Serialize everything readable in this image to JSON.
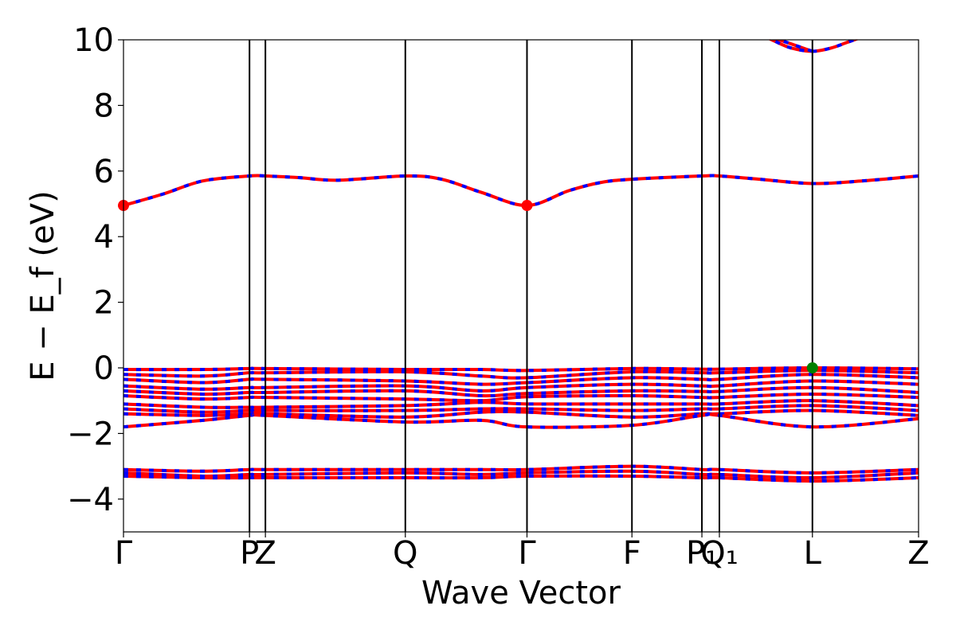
{
  "chart_data": {
    "type": "line",
    "title": "",
    "xlabel": "Wave Vector",
    "ylabel": "E − E_f (eV)",
    "ylim": [
      -5,
      10
    ],
    "yticks": [
      -4,
      -2,
      0,
      2,
      4,
      6,
      8,
      10
    ],
    "grid": false,
    "kpoints": [
      {
        "label": "Γ",
        "x": 0.0
      },
      {
        "label": "P",
        "x": 0.1585
      },
      {
        "label": "Z",
        "x": 0.1785
      },
      {
        "label": "Q",
        "x": 0.3545
      },
      {
        "label": "Γ",
        "x": 0.5075
      },
      {
        "label": "F",
        "x": 0.6395
      },
      {
        "label": "P₁",
        "x": 0.7275
      },
      {
        "label": "Q₁",
        "x": 0.7495
      },
      {
        "label": "L",
        "x": 0.8665
      },
      {
        "label": "Z",
        "x": 1.0
      }
    ],
    "colors": {
      "spin_up": "#0000ff",
      "spin_down": "#ff0000",
      "cbm_marker": "#ff0000",
      "vbm_marker": "#008000",
      "kline": "#000000"
    },
    "series": [
      {
        "x": [
          0.0,
          0.05,
          0.1,
          0.1585,
          0.1785,
          0.22,
          0.27,
          0.3545,
          0.4,
          0.45,
          0.5075,
          0.56,
          0.6,
          0.6395,
          0.7275,
          0.7495,
          0.8,
          0.8665,
          0.93,
          1.0
        ],
        "y": [
          4.95,
          5.3,
          5.7,
          5.85,
          5.85,
          5.8,
          5.72,
          5.85,
          5.75,
          5.35,
          4.95,
          5.4,
          5.65,
          5.75,
          5.85,
          5.85,
          5.75,
          5.62,
          5.7,
          5.85
        ]
      },
      {
        "x": [
          0.8665,
          0.8,
          0.82,
          0.84,
          0.8665,
          0.89,
          0.91,
          0.925
        ],
        "y": [
          9.65,
          10.2,
          9.95,
          9.75,
          9.65,
          9.75,
          9.92,
          10.05
        ]
      },
      {
        "x": [
          0.0,
          0.1,
          0.1585,
          0.1785,
          0.3545,
          0.45,
          0.5075,
          0.6395,
          0.7275,
          0.7495,
          0.8665,
          1.0
        ],
        "y": [
          -0.05,
          -0.05,
          -0.02,
          -0.02,
          -0.05,
          -0.05,
          -0.08,
          -0.02,
          -0.04,
          -0.04,
          0.0,
          -0.03
        ]
      },
      {
        "x": [
          0.0,
          0.1,
          0.1585,
          0.1785,
          0.3545,
          0.45,
          0.5075,
          0.6395,
          0.7275,
          0.7495,
          0.8665,
          1.0
        ],
        "y": [
          -0.2,
          -0.25,
          -0.15,
          -0.15,
          -0.12,
          -0.25,
          -0.3,
          -0.12,
          -0.15,
          -0.15,
          -0.08,
          -0.15
        ]
      },
      {
        "x": [
          0.0,
          0.1,
          0.1585,
          0.1785,
          0.3545,
          0.45,
          0.5075,
          0.6395,
          0.7275,
          0.7495,
          0.8665,
          1.0
        ],
        "y": [
          -0.35,
          -0.45,
          -0.35,
          -0.35,
          -0.4,
          -0.5,
          -0.45,
          -0.3,
          -0.35,
          -0.35,
          -0.2,
          -0.3
        ]
      },
      {
        "x": [
          0.0,
          0.1,
          0.1585,
          0.1785,
          0.3545,
          0.45,
          0.5075,
          0.6395,
          0.7275,
          0.7495,
          0.8665,
          1.0
        ],
        "y": [
          -0.55,
          -0.65,
          -0.6,
          -0.6,
          -0.55,
          -0.7,
          -0.6,
          -0.5,
          -0.55,
          -0.55,
          -0.4,
          -0.5
        ]
      },
      {
        "x": [
          0.0,
          0.1,
          0.1585,
          0.1785,
          0.3545,
          0.45,
          0.5075,
          0.6395,
          0.7275,
          0.7495,
          0.8665,
          1.0
        ],
        "y": [
          -0.7,
          -0.8,
          -0.75,
          -0.75,
          -0.7,
          -0.85,
          -0.78,
          -0.7,
          -0.72,
          -0.72,
          -0.6,
          -0.75
        ]
      },
      {
        "x": [
          0.0,
          0.1,
          0.1585,
          0.1785,
          0.3545,
          0.45,
          0.5075,
          0.6395,
          0.7275,
          0.7495,
          0.8665,
          1.0
        ],
        "y": [
          -0.85,
          -0.95,
          -0.9,
          -0.9,
          -0.95,
          -1.0,
          -0.88,
          -0.85,
          -0.9,
          -0.9,
          -0.8,
          -0.9
        ]
      },
      {
        "x": [
          0.0,
          0.1,
          0.1585,
          0.1785,
          0.3545,
          0.45,
          0.5075,
          0.6395,
          0.7275,
          0.7495,
          0.8665,
          1.0
        ],
        "y": [
          -1.1,
          -1.2,
          -1.2,
          -1.2,
          -1.15,
          -1.05,
          -1.1,
          -1.1,
          -1.1,
          -1.1,
          -1.0,
          -1.15
        ]
      },
      {
        "x": [
          0.0,
          0.1,
          0.1585,
          0.1785,
          0.3545,
          0.45,
          0.5075,
          0.6395,
          0.7275,
          0.7495,
          0.8665,
          1.0
        ],
        "y": [
          -1.25,
          -1.35,
          -1.3,
          -1.3,
          -1.3,
          -1.25,
          -1.25,
          -1.3,
          -1.25,
          -1.25,
          -1.15,
          -1.3
        ]
      },
      {
        "x": [
          0.0,
          0.1,
          0.1585,
          0.1785,
          0.3545,
          0.45,
          0.5075,
          0.6395,
          0.7275,
          0.7495,
          0.8665,
          1.0
        ],
        "y": [
          -1.4,
          -1.45,
          -1.4,
          -1.4,
          -1.5,
          -1.35,
          -1.35,
          -1.5,
          -1.4,
          -1.4,
          -1.3,
          -1.45
        ]
      },
      {
        "x": [
          0.0,
          0.1,
          0.1585,
          0.1785,
          0.3545,
          0.45,
          0.5075,
          0.6395,
          0.7275,
          0.7495,
          0.8665,
          1.0
        ],
        "y": [
          -1.8,
          -1.6,
          -1.45,
          -1.45,
          -1.65,
          -1.6,
          -1.8,
          -1.75,
          -1.45,
          -1.45,
          -1.8,
          -1.55
        ]
      },
      {
        "x": [
          0.0,
          0.1,
          0.1585,
          0.1785,
          0.3545,
          0.45,
          0.5075,
          0.6395,
          0.7275,
          0.7495,
          0.8665,
          1.0
        ],
        "y": [
          -3.1,
          -3.15,
          -3.1,
          -3.1,
          -3.1,
          -3.1,
          -3.1,
          -3.0,
          -3.1,
          -3.1,
          -3.2,
          -3.1
        ]
      },
      {
        "x": [
          0.0,
          0.1,
          0.1585,
          0.1785,
          0.3545,
          0.45,
          0.5075,
          0.6395,
          0.7275,
          0.7495,
          0.8665,
          1.0
        ],
        "y": [
          -3.2,
          -3.3,
          -3.25,
          -3.25,
          -3.2,
          -3.25,
          -3.2,
          -3.15,
          -3.25,
          -3.25,
          -3.35,
          -3.2
        ]
      },
      {
        "x": [
          0.0,
          0.1,
          0.1585,
          0.1785,
          0.3545,
          0.45,
          0.5075,
          0.6395,
          0.7275,
          0.7495,
          0.8665,
          1.0
        ],
        "y": [
          -3.3,
          -3.35,
          -3.35,
          -3.35,
          -3.35,
          -3.35,
          -3.3,
          -3.3,
          -3.35,
          -3.35,
          -3.45,
          -3.35
        ]
      }
    ],
    "markers": [
      {
        "kind": "cbm",
        "x": 0.0,
        "y": 4.95
      },
      {
        "kind": "cbm",
        "x": 0.5075,
        "y": 4.95
      },
      {
        "kind": "vbm",
        "x": 0.8665,
        "y": 0.0
      }
    ]
  }
}
